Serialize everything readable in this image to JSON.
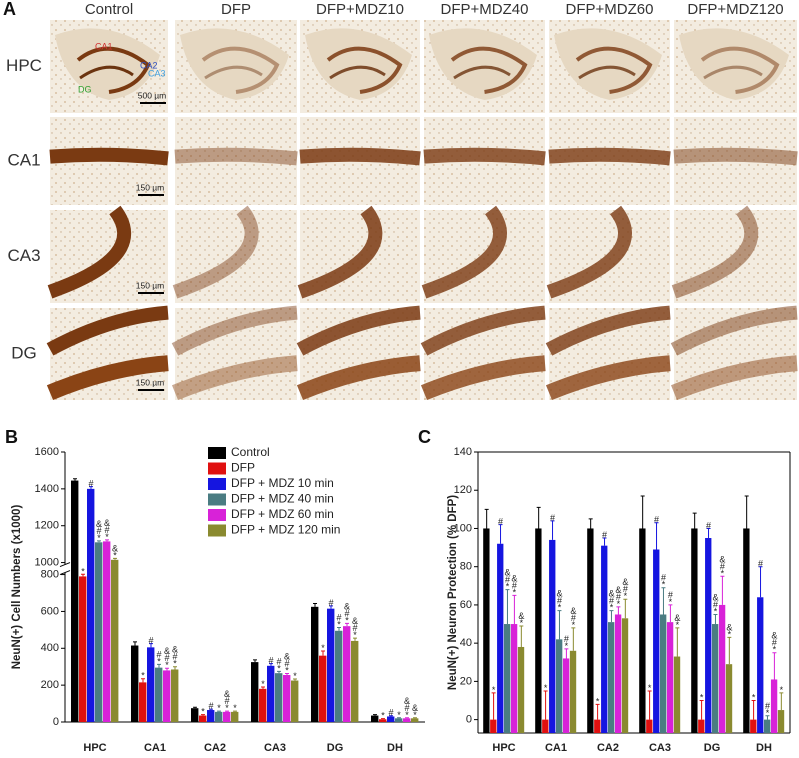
{
  "panel_a": {
    "label": "A",
    "columns": [
      "Control",
      "DFP",
      "DFP+MDZ10",
      "DFP+MDZ40",
      "DFP+MDZ60",
      "DFP+MDZ120"
    ],
    "rows": [
      "HPC",
      "CA1",
      "CA3",
      "DG"
    ],
    "region_labels": [
      "CA1",
      "CA2",
      "CA3",
      "DG"
    ],
    "scale_bars": [
      "500 µm",
      "150 µm",
      "150 µm",
      "150 µm"
    ]
  },
  "chart_data": [
    {
      "type": "bar",
      "panel_label": "B",
      "y_label": "NeuN(+) Cell Numbers (x1000)",
      "categories": [
        "HPC",
        "CA1",
        "CA2",
        "CA3",
        "DG",
        "DH"
      ],
      "ylim": [
        0,
        1600
      ],
      "broken_axis": [
        800,
        1000
      ],
      "yticks": [
        0,
        200,
        400,
        600,
        800,
        1000,
        1200,
        1400,
        1600
      ],
      "legend": true,
      "frame": false,
      "series": [
        {
          "name": "Control",
          "color": "#000000",
          "values": [
            1445,
            415,
            75,
            325,
            625,
            35
          ],
          "errors": [
            10,
            20,
            5,
            12,
            18,
            5
          ]
        },
        {
          "name": "DFP",
          "color": "#e01010",
          "values": [
            790,
            215,
            35,
            180,
            360,
            15
          ],
          "errors": [
            15,
            20,
            5,
            10,
            25,
            3
          ],
          "markers": [
            "*",
            "*",
            "*",
            "*",
            "*",
            "*"
          ]
        },
        {
          "name": "DFP + MDZ 10 min",
          "color": "#1515e0",
          "values": [
            1400,
            405,
            65,
            305,
            615,
            30
          ],
          "errors": [
            12,
            20,
            5,
            12,
            15,
            4
          ],
          "markers": [
            "#",
            "#",
            "#",
            "#",
            "#",
            "#"
          ]
        },
        {
          "name": "DFP + MDZ 40 min",
          "color": "#4a7c82",
          "values": [
            1110,
            295,
            55,
            265,
            495,
            20
          ],
          "errors": [
            8,
            18,
            4,
            10,
            18,
            3
          ],
          "markers": [
            "&#*",
            "#*",
            "*",
            "#*",
            "#*",
            "*"
          ]
        },
        {
          "name": "DFP + MDZ 60 min",
          "color": "#d822d8",
          "values": [
            1115,
            280,
            55,
            255,
            520,
            20
          ],
          "errors": [
            8,
            12,
            4,
            8,
            15,
            3
          ],
          "markers": [
            "&#*",
            "&#*",
            "&#*",
            "&#*",
            "&#*",
            "&#*"
          ]
        },
        {
          "name": "DFP + MDZ 120 min",
          "color": "#8a8a30",
          "values": [
            1015,
            285,
            55,
            225,
            440,
            20
          ],
          "errors": [
            8,
            15,
            4,
            8,
            15,
            3
          ],
          "markers": [
            "&*",
            "&#*",
            "*",
            "*",
            "&#*",
            "&*"
          ]
        }
      ]
    },
    {
      "type": "bar",
      "panel_label": "C",
      "y_label": "NeuN(+) Neuron Protection (% DFP)",
      "categories": [
        "HPC",
        "CA1",
        "CA2",
        "CA3",
        "DG",
        "DH"
      ],
      "ylim": [
        -7,
        140
      ],
      "yticks": [
        0,
        20,
        40,
        60,
        80,
        100,
        120,
        140
      ],
      "legend": false,
      "frame": true,
      "series": [
        {
          "color": "#000000",
          "values": [
            100,
            100,
            100,
            100,
            100,
            100
          ],
          "errors": [
            10,
            11,
            5,
            17,
            8,
            17
          ]
        },
        {
          "color": "#e01010",
          "values": [
            0,
            0,
            0,
            0,
            0,
            0
          ],
          "errors": [
            14,
            15,
            8,
            15,
            10,
            10
          ],
          "markers": [
            "*",
            "*",
            "*",
            "*",
            "*",
            "*"
          ]
        },
        {
          "color": "#1515e0",
          "values": [
            92,
            94,
            91,
            89,
            95,
            64
          ],
          "errors": [
            10,
            10,
            4,
            14,
            5,
            16
          ],
          "markers": [
            "#",
            "#",
            "#",
            "#",
            "#",
            "#"
          ]
        },
        {
          "color": "#4a7c82",
          "values": [
            50,
            42,
            51,
            55,
            50,
            0
          ],
          "errors": [
            18,
            15,
            6,
            14,
            5,
            2
          ],
          "markers": [
            "&#*",
            "&#*",
            "&#*",
            "#*",
            "&#*",
            "#*"
          ]
        },
        {
          "color": "#d822d8",
          "values": [
            50,
            32,
            55,
            51,
            60,
            21
          ],
          "errors": [
            15,
            5,
            4,
            9,
            15,
            14
          ],
          "markers": [
            "&#*",
            "#*",
            "&#*",
            "#*",
            "&#*",
            "&#*"
          ]
        },
        {
          "color": "#8a8a30",
          "values": [
            38,
            36,
            53,
            33,
            29,
            5
          ],
          "errors": [
            11,
            12,
            10,
            15,
            14,
            9
          ],
          "markers": [
            "&*",
            "&#*",
            "&#*",
            "&*",
            "&*",
            "*"
          ]
        }
      ]
    }
  ]
}
